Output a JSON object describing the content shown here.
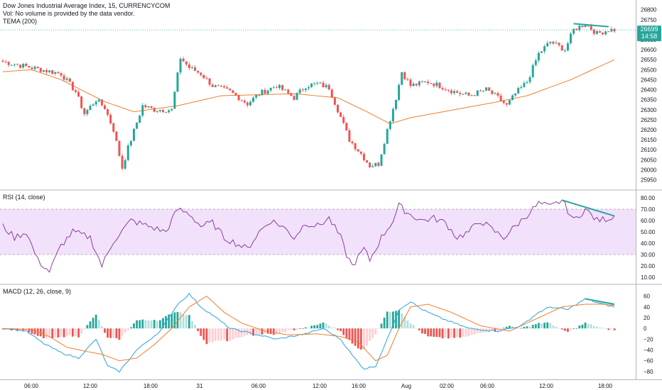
{
  "header": {
    "title": "Dow Jones Industrial Average Index, 15, CURRENCYCOM",
    "vol_note": "Vol: No volume is provided by the data vendor.",
    "tema_label": "TEMA (200)"
  },
  "price_pane": {
    "y_ticks": [
      25950,
      26000,
      26050,
      26100,
      26150,
      26200,
      26250,
      26300,
      26350,
      26400,
      26450,
      26500,
      26550,
      26600,
      26650,
      26700,
      26750,
      26800
    ],
    "ylim": [
      25920,
      26820
    ],
    "last_price_label": "26699",
    "countdown_label": "14:58",
    "last_price": 26699,
    "accent_color": "#26a69a"
  },
  "rsi_pane": {
    "label": "RSI (14, close)",
    "y_ticks": [
      "10.00",
      "20.00",
      "30.00",
      "40.00",
      "50.00",
      "60.00",
      "70.00",
      "80.00"
    ],
    "ylim": [
      5,
      85
    ],
    "band": [
      30,
      70
    ],
    "line_color": "#8e3ca0",
    "band_color": "#f1e1fb"
  },
  "macd_pane": {
    "label": "MACD (12, 26, close, 9)",
    "y_ticks": [
      "60",
      "40",
      "20",
      "0",
      "−20",
      "−40",
      "−60",
      "−80"
    ],
    "ylim": [
      -92,
      78
    ],
    "macd_color": "#2aa2dc",
    "signal_color": "#f07e2c"
  },
  "x_axis": {
    "labels": [
      "06:00",
      "12:00",
      "18:00",
      "31",
      "06:00",
      "12:00",
      "16:00",
      "Aug",
      "02:00",
      "06:00",
      "12:00",
      "18:00"
    ]
  },
  "chart_data": {
    "type": "candlestick",
    "anchors_price": [
      [
        0,
        26540
      ],
      [
        10,
        26510
      ],
      [
        20,
        26480
      ],
      [
        25,
        26390
      ],
      [
        28,
        26280
      ],
      [
        32,
        26350
      ],
      [
        35,
        26310
      ],
      [
        38,
        26200
      ],
      [
        41,
        26010
      ],
      [
        43,
        26110
      ],
      [
        48,
        26320
      ],
      [
        52,
        26300
      ],
      [
        58,
        26300
      ],
      [
        61,
        26560
      ],
      [
        64,
        26510
      ],
      [
        68,
        26480
      ],
      [
        72,
        26420
      ],
      [
        78,
        26390
      ],
      [
        84,
        26330
      ],
      [
        88,
        26380
      ],
      [
        94,
        26420
      ],
      [
        100,
        26360
      ],
      [
        104,
        26420
      ],
      [
        108,
        26430
      ],
      [
        112,
        26410
      ],
      [
        115,
        26300
      ],
      [
        119,
        26150
      ],
      [
        123,
        26080
      ],
      [
        126,
        26020
      ],
      [
        129,
        26030
      ],
      [
        132,
        26200
      ],
      [
        135,
        26360
      ],
      [
        137,
        26490
      ],
      [
        140,
        26420
      ],
      [
        146,
        26440
      ],
      [
        150,
        26420
      ],
      [
        155,
        26390
      ],
      [
        160,
        26370
      ],
      [
        166,
        26400
      ],
      [
        170,
        26360
      ],
      [
        173,
        26320
      ],
      [
        176,
        26380
      ],
      [
        180,
        26440
      ],
      [
        184,
        26580
      ],
      [
        188,
        26640
      ],
      [
        193,
        26600
      ],
      [
        196,
        26700
      ],
      [
        200,
        26730
      ],
      [
        204,
        26680
      ],
      [
        208,
        26700
      ],
      [
        210,
        26699
      ]
    ],
    "tema_anchors": [
      [
        0,
        26490
      ],
      [
        10,
        26500
      ],
      [
        20,
        26450
      ],
      [
        35,
        26340
      ],
      [
        45,
        26290
      ],
      [
        60,
        26320
      ],
      [
        75,
        26370
      ],
      [
        100,
        26380
      ],
      [
        115,
        26360
      ],
      [
        125,
        26290
      ],
      [
        133,
        26230
      ],
      [
        140,
        26260
      ],
      [
        155,
        26300
      ],
      [
        170,
        26340
      ],
      [
        180,
        26370
      ],
      [
        195,
        26450
      ],
      [
        210,
        26550
      ]
    ],
    "rsi_anchors": [
      [
        0,
        55
      ],
      [
        4,
        45
      ],
      [
        8,
        50
      ],
      [
        12,
        25
      ],
      [
        16,
        15
      ],
      [
        20,
        38
      ],
      [
        24,
        50
      ],
      [
        30,
        45
      ],
      [
        34,
        20
      ],
      [
        38,
        42
      ],
      [
        44,
        60
      ],
      [
        50,
        55
      ],
      [
        56,
        50
      ],
      [
        60,
        70
      ],
      [
        64,
        66
      ],
      [
        68,
        55
      ],
      [
        72,
        58
      ],
      [
        76,
        45
      ],
      [
        80,
        40
      ],
      [
        84,
        35
      ],
      [
        88,
        50
      ],
      [
        92,
        60
      ],
      [
        96,
        55
      ],
      [
        100,
        45
      ],
      [
        104,
        58
      ],
      [
        108,
        55
      ],
      [
        112,
        62
      ],
      [
        116,
        45
      ],
      [
        118,
        30
      ],
      [
        120,
        20
      ],
      [
        124,
        35
      ],
      [
        126,
        25
      ],
      [
        130,
        45
      ],
      [
        134,
        60
      ],
      [
        136,
        73
      ],
      [
        140,
        65
      ],
      [
        144,
        60
      ],
      [
        148,
        62
      ],
      [
        152,
        58
      ],
      [
        156,
        45
      ],
      [
        160,
        50
      ],
      [
        164,
        60
      ],
      [
        168,
        52
      ],
      [
        172,
        45
      ],
      [
        176,
        55
      ],
      [
        180,
        65
      ],
      [
        184,
        75
      ],
      [
        188,
        72
      ],
      [
        192,
        78
      ],
      [
        196,
        60
      ],
      [
        200,
        70
      ],
      [
        204,
        60
      ],
      [
        208,
        62
      ],
      [
        210,
        64
      ]
    ],
    "macd_anchors": [
      [
        0,
        0
      ],
      [
        8,
        -5
      ],
      [
        14,
        -28
      ],
      [
        20,
        -45
      ],
      [
        26,
        -55
      ],
      [
        32,
        -20
      ],
      [
        36,
        -70
      ],
      [
        40,
        -80
      ],
      [
        46,
        -40
      ],
      [
        54,
        -5
      ],
      [
        60,
        45
      ],
      [
        64,
        64
      ],
      [
        68,
        40
      ],
      [
        72,
        25
      ],
      [
        78,
        0
      ],
      [
        86,
        -10
      ],
      [
        94,
        -20
      ],
      [
        104,
        -10
      ],
      [
        110,
        0
      ],
      [
        116,
        -20
      ],
      [
        120,
        -50
      ],
      [
        124,
        -75
      ],
      [
        128,
        -70
      ],
      [
        132,
        -20
      ],
      [
        136,
        35
      ],
      [
        140,
        50
      ],
      [
        144,
        35
      ],
      [
        150,
        20
      ],
      [
        160,
        0
      ],
      [
        170,
        -5
      ],
      [
        178,
        5
      ],
      [
        184,
        30
      ],
      [
        188,
        40
      ],
      [
        194,
        35
      ],
      [
        200,
        55
      ],
      [
        206,
        45
      ],
      [
        210,
        40
      ]
    ],
    "signal_anchors": [
      [
        0,
        0
      ],
      [
        10,
        -2
      ],
      [
        16,
        -15
      ],
      [
        22,
        -35
      ],
      [
        28,
        -42
      ],
      [
        34,
        -48
      ],
      [
        40,
        -60
      ],
      [
        46,
        -55
      ],
      [
        52,
        -30
      ],
      [
        58,
        0
      ],
      [
        64,
        40
      ],
      [
        70,
        60
      ],
      [
        76,
        30
      ],
      [
        82,
        10
      ],
      [
        90,
        -5
      ],
      [
        98,
        -12
      ],
      [
        108,
        -10
      ],
      [
        116,
        -15
      ],
      [
        122,
        -25
      ],
      [
        128,
        -60
      ],
      [
        132,
        -50
      ],
      [
        136,
        0
      ],
      [
        140,
        40
      ],
      [
        146,
        45
      ],
      [
        154,
        30
      ],
      [
        164,
        5
      ],
      [
        174,
        -5
      ],
      [
        184,
        20
      ],
      [
        192,
        40
      ],
      [
        200,
        45
      ],
      [
        206,
        45
      ],
      [
        210,
        43
      ]
    ],
    "divergence_price": [
      [
        196,
        26730
      ],
      [
        208,
        26715
      ]
    ],
    "divergence_rsi": [
      [
        192,
        78
      ],
      [
        210,
        64
      ]
    ],
    "divergence_macd": [
      [
        200,
        55
      ],
      [
        210,
        45
      ]
    ]
  }
}
